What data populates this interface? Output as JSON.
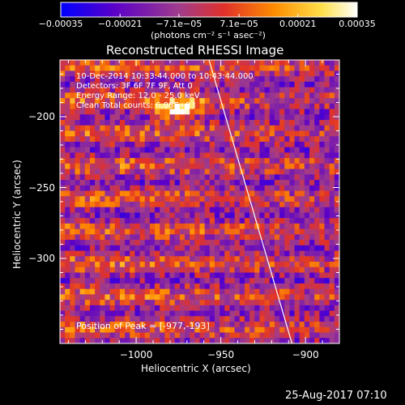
{
  "chart_data": {
    "type": "heatmap",
    "title": "Reconstructed RHESSI Image",
    "xlabel": "Heliocentric X (arcsec)",
    "ylabel": "Heliocentric Y (arcsec)",
    "xlim": [
      -1045,
      -880
    ],
    "ylim": [
      -360,
      -160
    ],
    "x_ticks": [
      -1000,
      -950,
      -900
    ],
    "x_tick_labels": [
      "−1000",
      "−950",
      "−900"
    ],
    "y_ticks": [
      -200,
      -250,
      -300
    ],
    "y_tick_labels": [
      "−200",
      "−250",
      "−300"
    ],
    "colorbar": {
      "min": -0.00035,
      "max": 0.00035,
      "ticks": [
        -0.00035,
        -0.00021,
        -7.1e-05,
        7.1e-05,
        0.00021,
        0.00035
      ],
      "tick_labels": [
        "−0.00035",
        "−0.00021",
        "−7.1e−05",
        "7.1e−05",
        "0.00021",
        "0.00035"
      ],
      "units": "(photons cm⁻² s⁻¹ asec⁻²)",
      "colors": [
        "#0000ff",
        "#5a00c8",
        "#a03c8c",
        "#e0302a",
        "#ff8c00",
        "#ffe04a",
        "#ffffff"
      ]
    },
    "info_lines": [
      "10-Dec-2014 10:33:44.000 to 10:43:44.000",
      "Detectors: 3F 6F 7F 9F, Att 0",
      "Energy Range: 12.0 - 25.0 keV",
      "Clean     Total counts: 6.08E+03"
    ],
    "peak_label": "Position of Peak = [-977,-193]",
    "peak": {
      "x": -977,
      "y": -193
    },
    "limb_line": [
      {
        "x": -957,
        "y": -160
      },
      {
        "x": -908,
        "y": -360
      }
    ],
    "grid": false
  },
  "timestamp": "25-Aug-2017 07:10"
}
